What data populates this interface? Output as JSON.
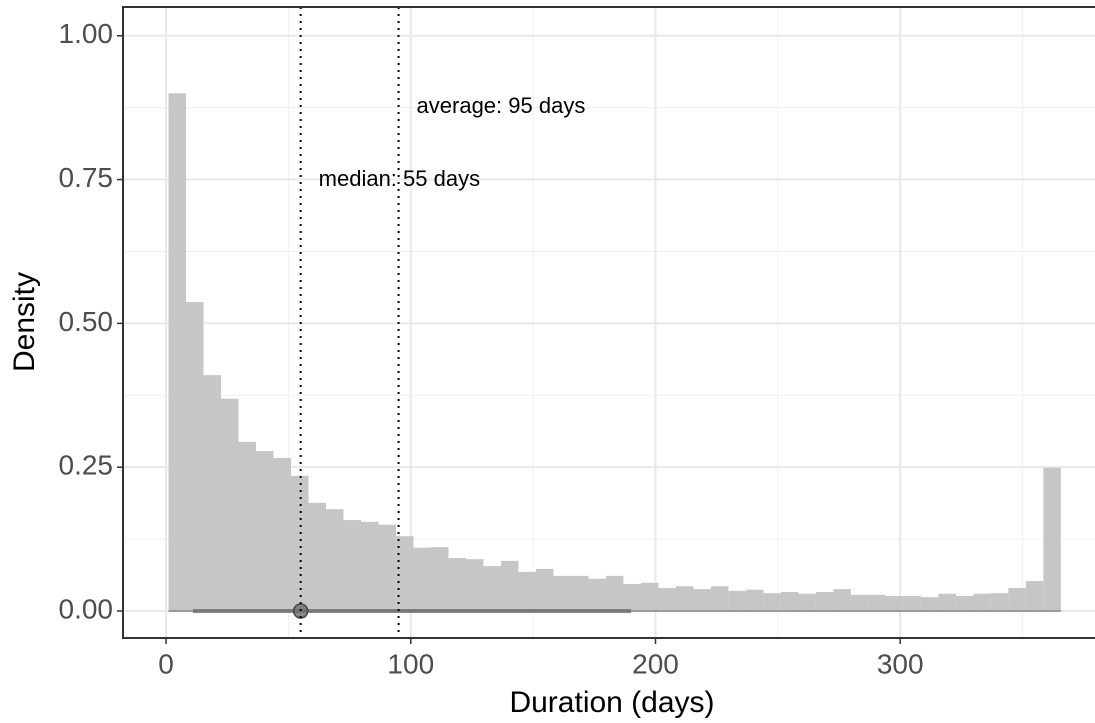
{
  "chart_data": {
    "type": "histogram",
    "xlabel": "Duration (days)",
    "ylabel": "Density",
    "bins": [
      1,
      8.15,
      15.3,
      22.45,
      29.6,
      36.75,
      43.9,
      51.05,
      58.2,
      65.35,
      72.5,
      79.65,
      86.8,
      93.95,
      101.1,
      108.25,
      115.4,
      122.55,
      129.7,
      136.85,
      144,
      151.15,
      158.3,
      165.45,
      172.6,
      179.75,
      186.9,
      194.05,
      201.2,
      208.35,
      215.5,
      222.65,
      229.8,
      236.95,
      244.1,
      251.25,
      258.4,
      265.55,
      272.7,
      279.85,
      287,
      294.15,
      301.3,
      308.45,
      315.6,
      322.75,
      329.9,
      337.05,
      344.2,
      351.35,
      358.5,
      365.65
    ],
    "counts": [
      0.9,
      0.537,
      0.41,
      0.369,
      0.294,
      0.278,
      0.266,
      0.235,
      0.188,
      0.177,
      0.158,
      0.155,
      0.15,
      0.13,
      0.11,
      0.111,
      0.092,
      0.09,
      0.078,
      0.087,
      0.068,
      0.073,
      0.061,
      0.061,
      0.056,
      0.061,
      0.047,
      0.049,
      0.04,
      0.043,
      0.038,
      0.043,
      0.035,
      0.037,
      0.031,
      0.033,
      0.03,
      0.033,
      0.038,
      0.028,
      0.028,
      0.026,
      0.026,
      0.024,
      0.03,
      0.026,
      0.03,
      0.031,
      0.04,
      0.052,
      0.249
    ],
    "color": "#c6c6c6",
    "vlines": [
      {
        "value": 55,
        "label": "median: 55 days"
      },
      {
        "value": 95,
        "label": "average: 95 days"
      }
    ],
    "point": 55,
    "interval": [
      11,
      190
    ],
    "interval_color": "#6e6e6e",
    "xlim": [
      -17.6,
      379.6
    ],
    "ylim": [
      -0.047,
      1.05
    ],
    "xticks": [
      0,
      100,
      200,
      300
    ],
    "yticks": [
      {
        "value": 0,
        "label": "0.00"
      },
      {
        "value": 0.25,
        "label": "0.25"
      },
      {
        "value": 0.5,
        "label": "0.50"
      },
      {
        "value": 0.75,
        "label": "0.75"
      },
      {
        "value": 1,
        "label": "1.00"
      }
    ],
    "minor_xticks": [
      50,
      150,
      250,
      350
    ],
    "minor_yticks": [
      0.125,
      0.375,
      0.625,
      0.875
    ],
    "grid": true
  }
}
